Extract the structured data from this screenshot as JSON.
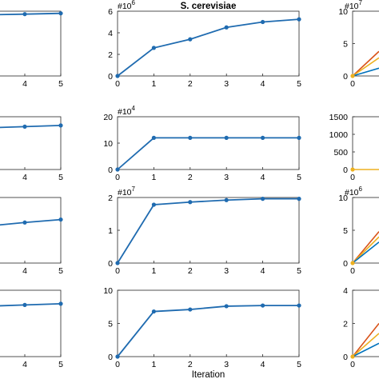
{
  "series_color": "#1f6bb0",
  "partial_line_colors": [
    "#d95319",
    "#edb120",
    "#0072bd"
  ],
  "chart_data": [
    {
      "type": "line",
      "panel_row": 1,
      "panel_col": 1,
      "title": "",
      "xlabel": "",
      "ylabel": "",
      "x": [
        0,
        1,
        2,
        3,
        4,
        5
      ],
      "visible_x": [
        4,
        5
      ],
      "y_partial": {
        "4": 5.8,
        "5": 5.85
      },
      "xtick_labels": [
        "4",
        "5"
      ],
      "ytick_labels": [],
      "exponent": "",
      "grid": false
    },
    {
      "type": "line",
      "panel_row": 1,
      "panel_col": 2,
      "title": "S. cerevisiae",
      "xlabel": "",
      "ylabel": "",
      "x": [
        0,
        1,
        2,
        3,
        4,
        5
      ],
      "values": [
        0,
        2.6,
        3.4,
        4.5,
        5.0,
        5.25
      ],
      "ylim": [
        0,
        6
      ],
      "xtick_labels": [
        "0",
        "1",
        "2",
        "3",
        "4",
        "5"
      ],
      "ytick_labels": [
        "0",
        "2",
        "4",
        "6"
      ],
      "exponent": "#10^6",
      "grid": false
    },
    {
      "type": "line",
      "panel_row": 1,
      "panel_col": 3,
      "title": "",
      "xlabel": "",
      "ylabel": "",
      "ylim": [
        0,
        10
      ],
      "ytick_labels": [
        "0",
        "5",
        "10"
      ],
      "xtick_labels": [
        "0"
      ],
      "exponent": "#10^7",
      "series": [
        {
          "values": [
            0,
            3.8
          ]
        },
        {
          "values": [
            0,
            2.8
          ]
        },
        {
          "values": [
            0,
            1.2
          ]
        }
      ],
      "grid": false
    },
    {
      "type": "line",
      "panel_row": 2,
      "panel_col": 1,
      "title": "",
      "xlabel": "",
      "ylabel": "",
      "x": [
        0,
        1,
        2,
        3,
        4,
        5
      ],
      "visible_x": [
        3,
        4,
        5
      ],
      "y_partial": {
        "3": 12.1,
        "4": 12.2,
        "5": 12.3
      },
      "xtick_labels": [
        "4",
        "5"
      ],
      "ytick_labels": [],
      "exponent": "",
      "grid": false
    },
    {
      "type": "line",
      "panel_row": 2,
      "panel_col": 2,
      "title": "",
      "xlabel": "",
      "ylabel": "",
      "x": [
        0,
        1,
        2,
        3,
        4,
        5
      ],
      "values": [
        0,
        12,
        12,
        12,
        12,
        12
      ],
      "ylim": [
        0,
        20
      ],
      "xtick_labels": [
        "0",
        "1",
        "2",
        "3",
        "4",
        "5"
      ],
      "ytick_labels": [
        "0",
        "10",
        "20"
      ],
      "exponent": "#10^4",
      "grid": false
    },
    {
      "type": "line",
      "panel_row": 2,
      "panel_col": 3,
      "title": "",
      "xlabel": "",
      "ylabel": "",
      "ylim": [
        0,
        1500
      ],
      "ytick_labels": [
        "0",
        "500",
        "1000",
        "1500"
      ],
      "xtick_labels": [
        "0"
      ],
      "exponent": "",
      "series": [
        {
          "values": [
            0,
            0
          ]
        }
      ],
      "grid": false
    },
    {
      "type": "line",
      "panel_row": 3,
      "panel_col": 1,
      "title": "",
      "xlabel": "",
      "ylabel": "",
      "x": [
        0,
        1,
        2,
        3,
        4,
        5
      ],
      "visible_x": [
        3,
        4,
        5
      ],
      "y_partial": {
        "3": 12.5,
        "4": 13.2,
        "5": 13.8
      },
      "xtick_labels": [
        "4",
        "5"
      ],
      "ytick_labels": [],
      "exponent": "",
      "grid": false
    },
    {
      "type": "line",
      "panel_row": 3,
      "panel_col": 2,
      "title": "",
      "xlabel": "",
      "ylabel": "",
      "x": [
        0,
        1,
        2,
        3,
        4,
        5
      ],
      "values": [
        0,
        1.78,
        1.86,
        1.92,
        1.96,
        1.96
      ],
      "ylim": [
        0,
        2
      ],
      "xtick_labels": [
        "0",
        "1",
        "2",
        "3",
        "4",
        "5"
      ],
      "ytick_labels": [
        "0",
        "1",
        "2"
      ],
      "exponent": "#10^7",
      "grid": false
    },
    {
      "type": "line",
      "panel_row": 3,
      "panel_col": 3,
      "title": "",
      "xlabel": "",
      "ylabel": "",
      "ylim": [
        0,
        10
      ],
      "ytick_labels": [
        "0",
        "5",
        "10"
      ],
      "xtick_labels": [
        "0"
      ],
      "exponent": "#10^6",
      "series": [
        {
          "values": [
            0,
            4.8
          ]
        },
        {
          "values": [
            0,
            4.0
          ]
        },
        {
          "values": [
            0,
            3.2
          ]
        }
      ],
      "grid": false
    },
    {
      "type": "line",
      "panel_row": 4,
      "panel_col": 1,
      "title": "",
      "xlabel": "",
      "ylabel": "",
      "x": [
        0,
        1,
        2,
        3,
        4,
        5
      ],
      "visible_x": [
        3,
        4,
        5
      ],
      "y_partial": {
        "3": 6.9,
        "4": 7.0,
        "5": 7.1
      },
      "xtick_labels": [
        "4",
        "5"
      ],
      "ytick_labels": [],
      "exponent": "",
      "grid": false
    },
    {
      "type": "line",
      "panel_row": 4,
      "panel_col": 2,
      "title": "",
      "xlabel": "Iteration",
      "ylabel": "",
      "x": [
        0,
        1,
        2,
        3,
        4,
        5
      ],
      "values": [
        0,
        6.8,
        7.1,
        7.6,
        7.7,
        7.7
      ],
      "ylim": [
        0,
        10
      ],
      "xtick_labels": [
        "0",
        "1",
        "2",
        "3",
        "4",
        "5"
      ],
      "ytick_labels": [
        "0",
        "5",
        "10"
      ],
      "exponent": "",
      "grid": false
    },
    {
      "type": "line",
      "panel_row": 4,
      "panel_col": 3,
      "title": "",
      "xlabel": "",
      "ylabel": "",
      "ylim": [
        0,
        4
      ],
      "ytick_labels": [
        "0",
        "2",
        "4"
      ],
      "xtick_labels": [
        "0"
      ],
      "exponent": "",
      "series": [
        {
          "values": [
            0,
            2.0
          ]
        },
        {
          "values": [
            0,
            1.4
          ]
        },
        {
          "values": [
            0,
            0.8
          ]
        }
      ],
      "grid": false
    }
  ]
}
